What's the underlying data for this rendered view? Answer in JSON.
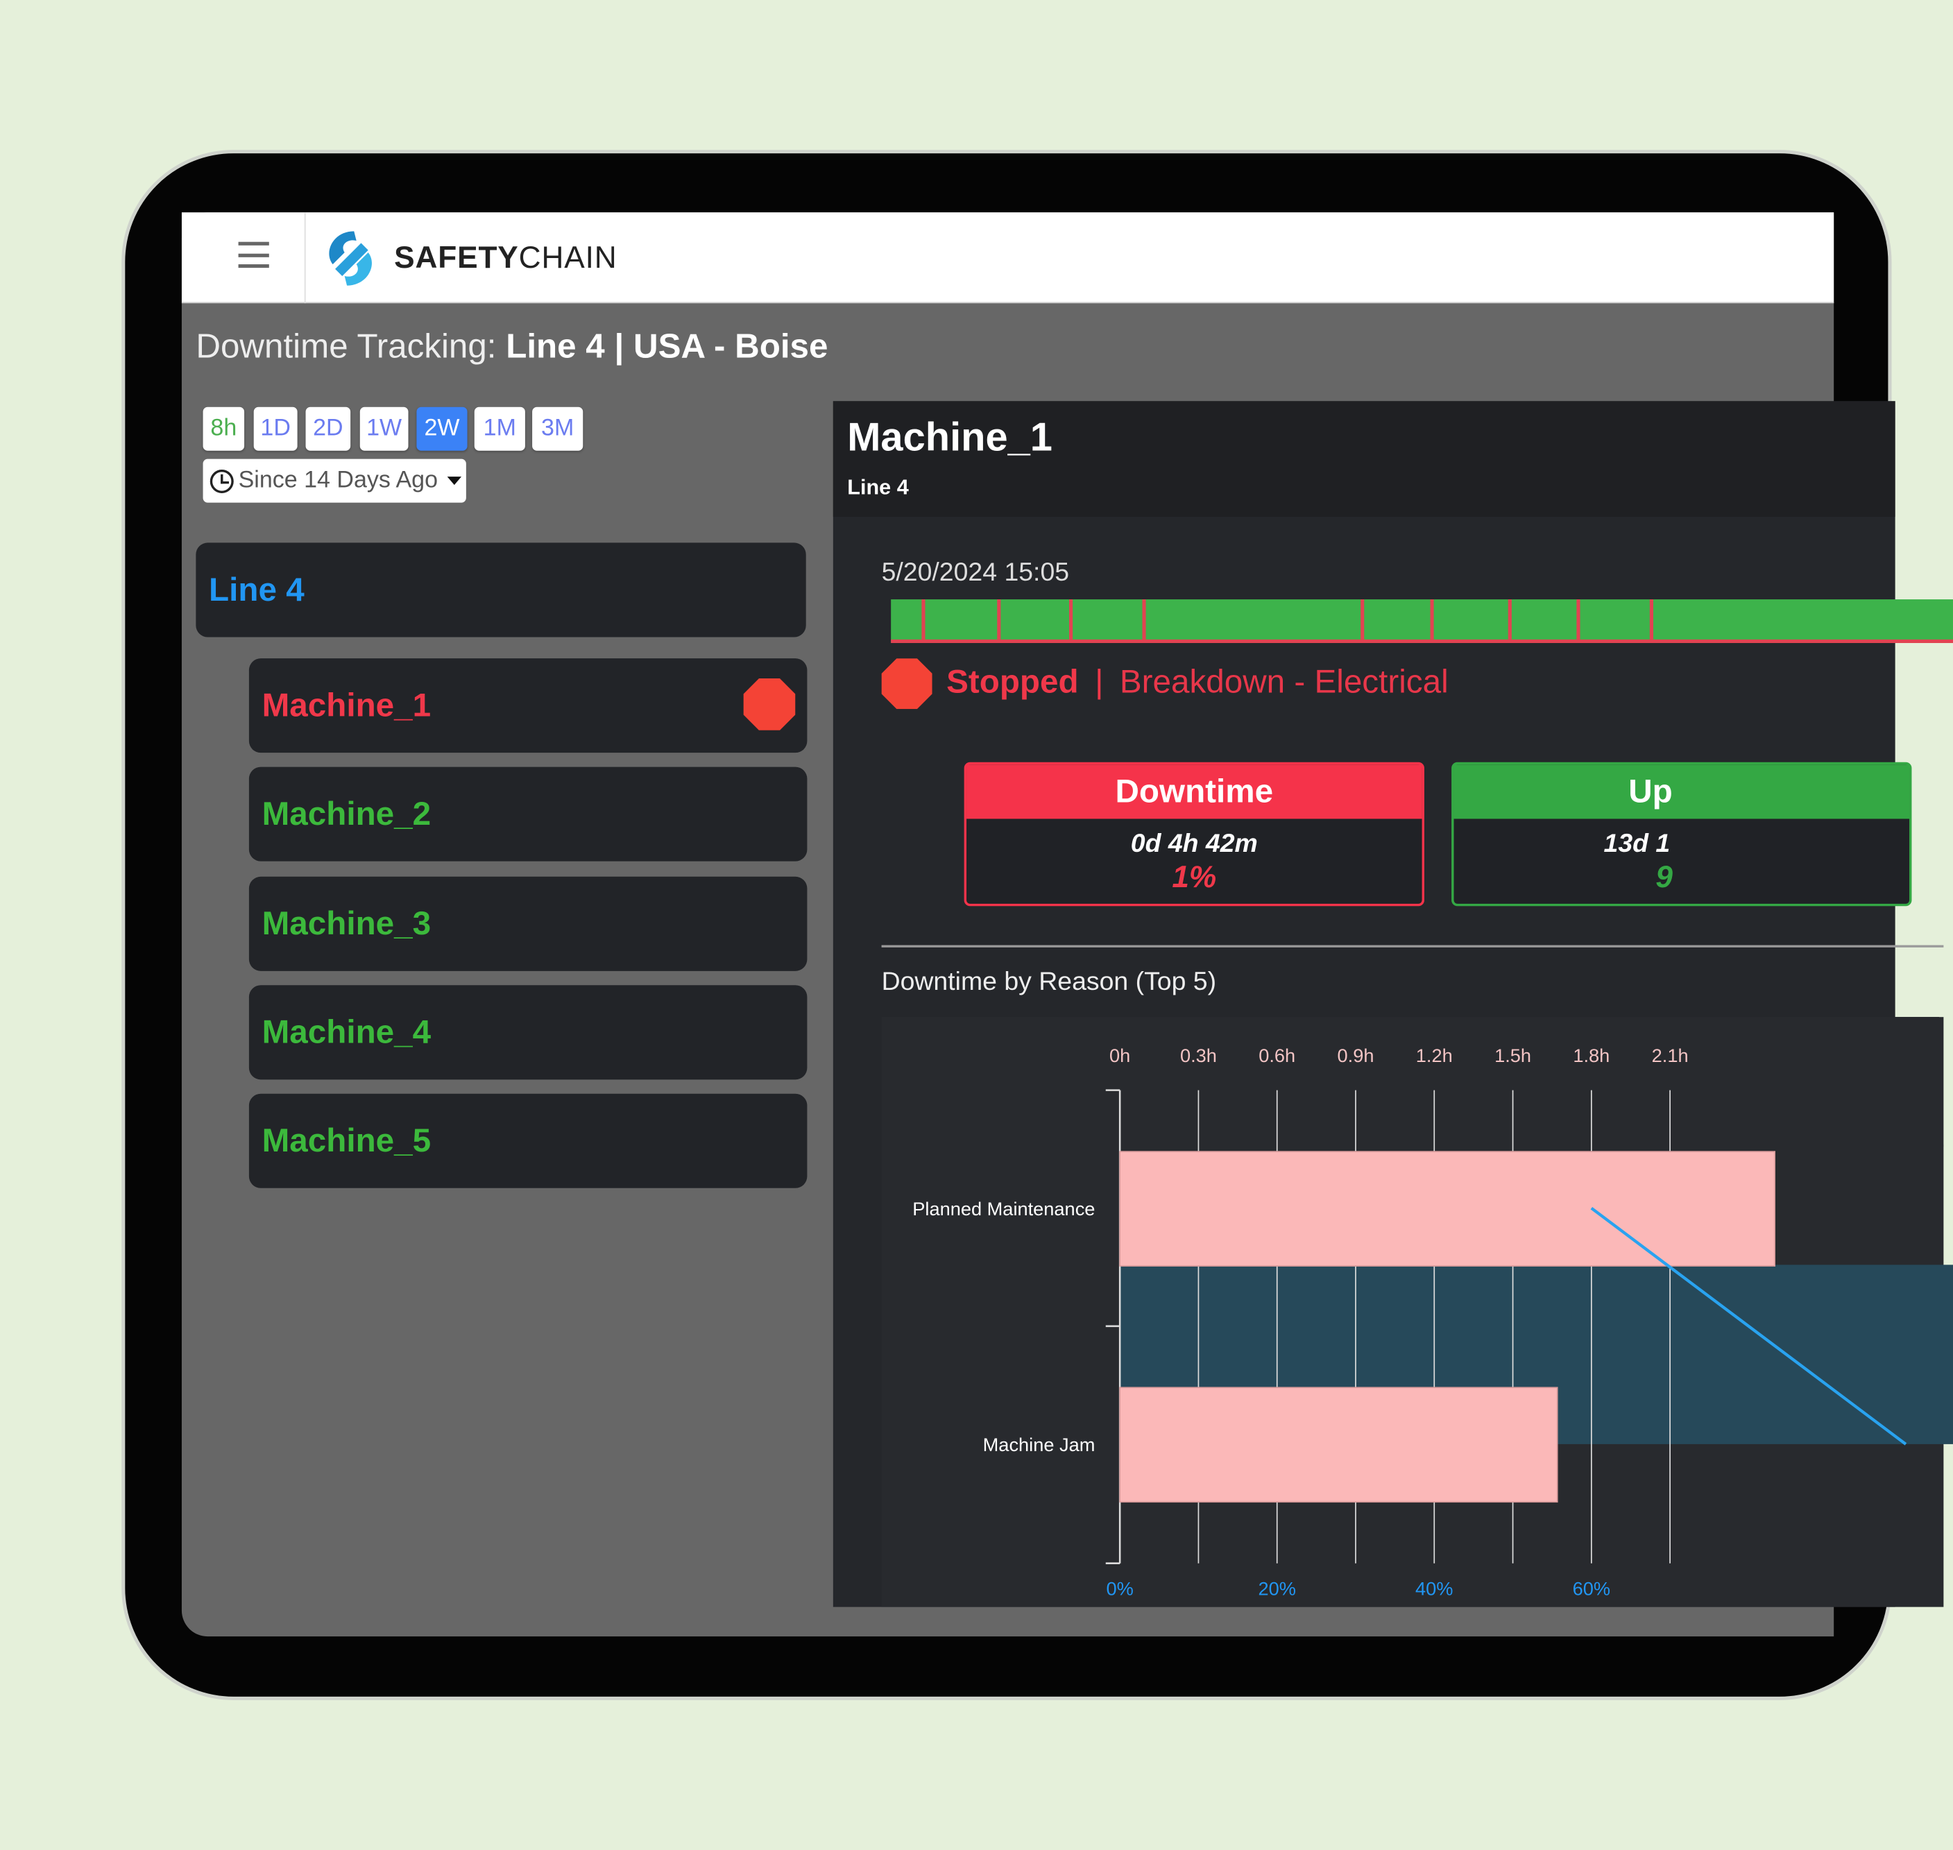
{
  "header": {
    "brand_bold": "SAFETY",
    "brand_light": "CHAIN"
  },
  "page": {
    "title_prefix": "Downtime Tracking:",
    "title_main": "Line 4 | USA - Boise"
  },
  "range_buttons": [
    {
      "label": "8h",
      "color": "#4caf50"
    },
    {
      "label": "1D"
    },
    {
      "label": "2D"
    },
    {
      "label": "1W"
    },
    {
      "label": "2W",
      "active": true
    },
    {
      "label": "1M"
    },
    {
      "label": "3M"
    }
  ],
  "range_dropdown": {
    "value": "Since 14 Days Ago"
  },
  "sidebar": {
    "line": {
      "label": "Line 4",
      "color": "#2196f3"
    },
    "machines": [
      {
        "label": "Machine_1",
        "status": "stopped",
        "color": "#f0384a"
      },
      {
        "label": "Machine_2",
        "status": "running",
        "color": "#3cb93c"
      },
      {
        "label": "Machine_3",
        "status": "running",
        "color": "#3cb93c"
      },
      {
        "label": "Machine_4",
        "status": "running",
        "color": "#3cb93c"
      },
      {
        "label": "Machine_5",
        "status": "running",
        "color": "#3cb93c"
      }
    ]
  },
  "detail": {
    "machine": "Machine_1",
    "line": "Line 4",
    "timeline_start": "5/20/2024 15:05",
    "status": "Stopped",
    "separator": "|",
    "reason": "Breakdown - Electrical",
    "downtime": {
      "title": "Downtime",
      "duration": "0d 4h 42m",
      "percent": "1%"
    },
    "uptime": {
      "title": "Up",
      "duration": "13d 1",
      "percent": "9"
    },
    "colors": {
      "running": "#3db34b",
      "stopped": "#e24352"
    }
  },
  "chart_data": {
    "type": "bar",
    "orientation": "horizontal",
    "title": "Downtime by Reason (Top 5)",
    "categories": [
      "Planned Maintenance",
      "Machine Jam"
    ],
    "values": [
      2.5,
      1.67
    ],
    "unit": "h",
    "x_ticks": [
      "0h",
      "0.3h",
      "0.6h",
      "0.9h",
      "1.2h",
      "1.5h",
      "1.8h",
      "2.1h"
    ],
    "x_tick_values": [
      0,
      0.3,
      0.6,
      0.9,
      1.2,
      1.5,
      1.8,
      2.1
    ],
    "pct_ticks": [
      "0%",
      "20%",
      "40%",
      "60%"
    ],
    "pct_tick_values": [
      0,
      20,
      40,
      60
    ],
    "cumulative_percent": [
      60,
      100
    ],
    "bar_color": "#fbb8b8",
    "line_color": "#29a3f0",
    "highlight_color": "#26495a"
  }
}
